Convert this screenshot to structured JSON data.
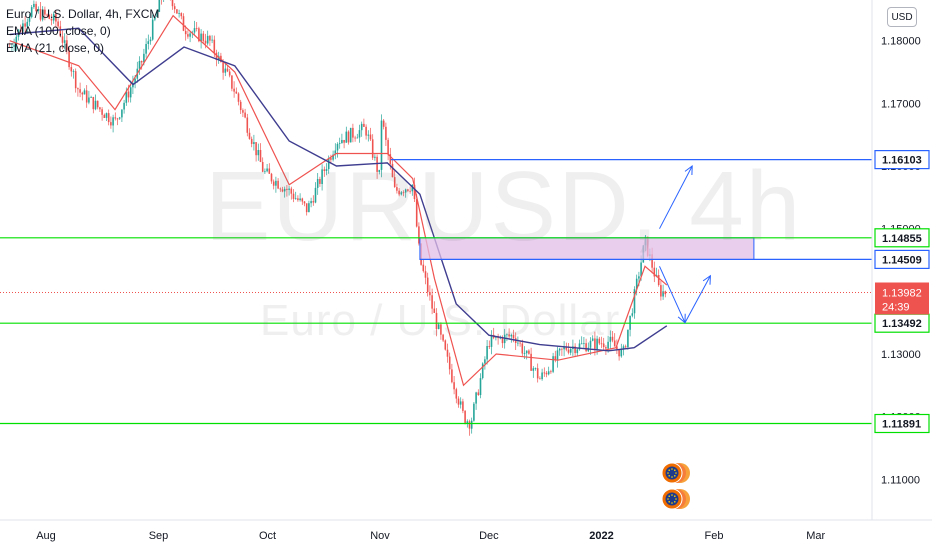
{
  "legend": {
    "symbol": "Euro / U.S. Dollar, 4h, FXCM",
    "ema_long": "EMA (100, close, 0)",
    "ema_short": "EMA (21, close, 0)"
  },
  "currency_button": "USD",
  "watermark": {
    "main": "EURUSD, 4h",
    "sub": "Euro / U.S. Dollar"
  },
  "countdown": "24:39",
  "colors": {
    "up": "#26a69a",
    "down": "#ef5350",
    "ema_long": "#3f3d8f",
    "ema_short": "#ef5350",
    "level": "#00e000",
    "blue_level": "#2962ff",
    "zone": "#e1bee7",
    "arrow": "#2962ff"
  },
  "chart_data": {
    "type": "candlestick",
    "symbol": "EURUSD",
    "timeframe": "4h",
    "source": "FXCM",
    "x_ticks": [
      "Aug",
      "Sep",
      "Oct",
      "Nov",
      "Dec",
      "2022",
      "Feb",
      "Mar"
    ],
    "y_ticks": [
      "1.18000",
      "1.17000",
      "1.16000",
      "1.15000",
      "1.14000",
      "1.13000",
      "1.12000",
      "1.11000"
    ],
    "y_tick_values": [
      1.18,
      1.17,
      1.16,
      1.15,
      1.14,
      1.13,
      1.12,
      1.11
    ],
    "ylim": [
      1.1035,
      1.1865
    ],
    "price_path": [
      [
        "Jul 22",
        1.179
      ],
      [
        "Jul 28",
        1.185
      ],
      [
        "Aug 4",
        1.183
      ],
      [
        "Aug 10",
        1.172
      ],
      [
        "Aug 20",
        1.167
      ],
      [
        "Aug 27",
        1.176
      ],
      [
        "Sep 3",
        1.189
      ],
      [
        "Sep 8",
        1.182
      ],
      [
        "Sep 15",
        1.18
      ],
      [
        "Sep 22",
        1.172
      ],
      [
        "Sep 30",
        1.159
      ],
      [
        "Oct 7",
        1.156
      ],
      [
        "Oct 12",
        1.153
      ],
      [
        "Oct 20",
        1.164
      ],
      [
        "Oct 28",
        1.166
      ],
      [
        "Nov 1",
        1.158
      ],
      [
        "Nov 1",
        1.169
      ],
      [
        "Nov 5",
        1.156
      ],
      [
        "Nov 10",
        1.157
      ],
      [
        "Nov 12",
        1.145
      ],
      [
        "Nov 16",
        1.136
      ],
      [
        "Nov 20",
        1.128
      ],
      [
        "Nov 24",
        1.12
      ],
      [
        "Nov 26",
        1.119
      ],
      [
        "Dec 1",
        1.132
      ],
      [
        "Dec 8",
        1.133
      ],
      [
        "Dec 15",
        1.126
      ],
      [
        "Dec 22",
        1.131
      ],
      [
        "Jan 3",
        1.132
      ],
      [
        "Jan 7",
        1.13
      ],
      [
        "Jan 11",
        1.142
      ],
      [
        "Jan 13",
        1.148
      ],
      [
        "Jan 17",
        1.14
      ],
      [
        "Jan 19",
        1.1398
      ]
    ],
    "ema_100": [
      [
        "Jul 22",
        1.181
      ],
      [
        "Aug 10",
        1.182
      ],
      [
        "Aug 25",
        1.173
      ],
      [
        "Sep 8",
        1.179
      ],
      [
        "Sep 22",
        1.176
      ],
      [
        "Oct 7",
        1.164
      ],
      [
        "Oct 20",
        1.16
      ],
      [
        "Nov 3",
        1.1605
      ],
      [
        "Nov 12",
        1.1555
      ],
      [
        "Nov 22",
        1.138
      ],
      [
        "Dec 1",
        1.133
      ],
      [
        "Dec 15",
        1.1315
      ],
      [
        "Jan 3",
        1.1305
      ],
      [
        "Jan 10",
        1.131
      ],
      [
        "Jan 19",
        1.1345
      ]
    ],
    "ema_21": [
      [
        "Jul 22",
        1.18
      ],
      [
        "Aug 10",
        1.176
      ],
      [
        "Aug 20",
        1.169
      ],
      [
        "Sep 5",
        1.184
      ],
      [
        "Sep 22",
        1.175
      ],
      [
        "Oct 7",
        1.157
      ],
      [
        "Oct 20",
        1.162
      ],
      [
        "Nov 3",
        1.162
      ],
      [
        "Nov 10",
        1.158
      ],
      [
        "Nov 16",
        1.142
      ],
      [
        "Nov 24",
        1.125
      ],
      [
        "Dec 3",
        1.13
      ],
      [
        "Dec 20",
        1.129
      ],
      [
        "Jan 5",
        1.131
      ],
      [
        "Jan 13",
        1.144
      ],
      [
        "Jan 19",
        1.141
      ]
    ],
    "horizontal_levels": [
      {
        "label": "1.16103",
        "value": 1.16103,
        "color": "blue",
        "from": "Nov 4"
      },
      {
        "label": "1.14855",
        "value": 1.14855,
        "color": "green",
        "from": "start"
      },
      {
        "label": "1.14509",
        "value": 1.14509,
        "color": "blue",
        "from": "Nov 12"
      },
      {
        "label": "1.13492",
        "value": 1.13492,
        "color": "green",
        "from": "start"
      },
      {
        "label": "1.11891",
        "value": 1.11891,
        "color": "green",
        "from": "start"
      }
    ],
    "current_price": {
      "label": "1.13982",
      "value": 1.13982
    },
    "zone": {
      "from": "Nov 12",
      "to": "Feb 12",
      "top": 1.14855,
      "bottom": 1.14509
    },
    "projection_arrows": [
      {
        "from": [
          "Jan 17",
          1.144
        ],
        "to": [
          "Jan 24",
          1.135
        ]
      },
      {
        "from": [
          "Jan 24",
          1.135
        ],
        "to": [
          "Jan 31",
          1.1425
        ]
      },
      {
        "from": [
          "Jan 17",
          1.15
        ],
        "to": [
          "Jan 26",
          1.16
        ]
      }
    ],
    "grid": false
  }
}
